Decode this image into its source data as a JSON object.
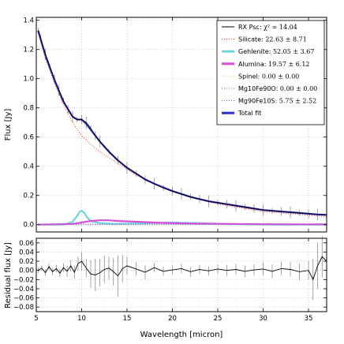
{
  "chart_data": [
    {
      "type": "line",
      "xlabel": "",
      "ylabel": "Flux [Jy]",
      "xlim": [
        5,
        37
      ],
      "ylim": [
        -0.05,
        1.42
      ],
      "xticks": [
        5,
        10,
        15,
        20,
        25,
        30,
        35
      ],
      "yticks": [
        0.0,
        0.2,
        0.4,
        0.6,
        0.8,
        1.0,
        1.2,
        1.4
      ],
      "ytick_labels": [
        "0.0",
        "0.2",
        "0.4",
        "0.6",
        "0.8",
        "1.0",
        "1.2",
        "1.4"
      ],
      "grid": true,
      "legend_position": "top-right",
      "observed": {
        "name": "RX Psc",
        "color": "#000000",
        "errorbar_color": "#808080",
        "x": [
          5.2,
          5.5,
          6.0,
          6.5,
          7.0,
          7.5,
          8.0,
          8.5,
          9.0,
          9.5,
          10.0,
          10.5,
          11.0,
          11.5,
          12.0,
          13.0,
          14.0,
          15.0,
          16.0,
          17.0,
          18.0,
          19.0,
          20.0,
          21.0,
          22.0,
          23.0,
          24.0,
          25.0,
          26.0,
          27.0,
          28.0,
          29.0,
          30.0,
          31.0,
          32.0,
          33.0,
          34.0,
          35.0,
          36.0,
          37.0
        ],
        "y": [
          1.33,
          1.27,
          1.17,
          1.08,
          1.0,
          0.92,
          0.85,
          0.79,
          0.74,
          0.72,
          0.72,
          0.7,
          0.66,
          0.61,
          0.57,
          0.5,
          0.44,
          0.39,
          0.35,
          0.31,
          0.28,
          0.25,
          0.23,
          0.21,
          0.19,
          0.175,
          0.16,
          0.15,
          0.14,
          0.13,
          0.12,
          0.11,
          0.1,
          0.095,
          0.09,
          0.085,
          0.08,
          0.075,
          0.07,
          0.068
        ]
      },
      "components": [
        {
          "name": "Silicate",
          "value": "22.63 ± 8.71",
          "color": "#ff3b30",
          "style": "dotted",
          "x": [
            5.2,
            6.0,
            7.0,
            8.0,
            9.0,
            10.0,
            11.0,
            12.0,
            13.0,
            14.0,
            15.0,
            16.0,
            17.0,
            18.0,
            20.0,
            22.0,
            24.0,
            26.0,
            28.0,
            30.0,
            32.0,
            34.0,
            36.0,
            37.0
          ],
          "y": [
            1.32,
            1.14,
            0.97,
            0.82,
            0.7,
            0.61,
            0.55,
            0.5,
            0.46,
            0.42,
            0.38,
            0.34,
            0.31,
            0.28,
            0.23,
            0.19,
            0.155,
            0.13,
            0.11,
            0.09,
            0.08,
            0.07,
            0.06,
            0.055
          ]
        },
        {
          "name": "Gehlenite",
          "value": "52.05 ± 3.67",
          "color": "#6fd6e0",
          "style": "solid-thick",
          "x": [
            5.2,
            8.0,
            9.0,
            9.5,
            9.8,
            10.0,
            10.3,
            10.6,
            11.0,
            12.0,
            14.0,
            17.0,
            20.0,
            23.0,
            26.0,
            30.0,
            37.0
          ],
          "y": [
            0.0,
            0.0,
            0.02,
            0.06,
            0.09,
            0.095,
            0.08,
            0.05,
            0.025,
            0.01,
            0.005,
            0.01,
            0.015,
            0.01,
            0.005,
            0.0,
            0.0
          ]
        },
        {
          "name": "Alumina",
          "value": "19.57 ± 6.12",
          "color": "#d94fd6",
          "style": "solid-thick",
          "x": [
            5.2,
            9.0,
            10.0,
            11.0,
            12.0,
            13.0,
            14.0,
            16.0,
            18.0,
            20.0,
            22.0,
            26.0,
            30.0,
            37.0
          ],
          "y": [
            0.0,
            0.005,
            0.015,
            0.025,
            0.03,
            0.03,
            0.025,
            0.02,
            0.015,
            0.01,
            0.008,
            0.005,
            0.003,
            0.002
          ]
        },
        {
          "name": "Spinel",
          "value": "0.00 ± 0.00",
          "color": "#e3d68a",
          "style": "dotted",
          "x": [
            5.2,
            37.0
          ],
          "y": [
            0.0,
            0.0
          ]
        },
        {
          "name": "Mg10Fe90O",
          "value": "0.00 ± 0.00",
          "color": "#7a7a7a",
          "style": "dotted",
          "x": [
            5.2,
            37.0
          ],
          "y": [
            0.0,
            0.0
          ]
        },
        {
          "name": "Mg90Fe10S",
          "value": "5.75 ± 2.52",
          "color": "#7b5cff",
          "style": "dotted",
          "x": [
            5.2,
            10.0,
            15.0,
            20.0,
            25.0,
            30.0,
            37.0
          ],
          "y": [
            0.002,
            0.003,
            0.004,
            0.004,
            0.003,
            0.002,
            0.001
          ]
        },
        {
          "name": "Total fit",
          "value": "",
          "color": "#2d2dc8",
          "style": "solid-thick",
          "x": [
            5.2,
            6.0,
            7.0,
            8.0,
            9.0,
            9.5,
            10.0,
            10.5,
            11.0,
            12.0,
            13.0,
            14.0,
            15.0,
            16.0,
            17.0,
            18.0,
            20.0,
            22.0,
            24.0,
            26.0,
            28.0,
            30.0,
            32.0,
            34.0,
            36.0,
            37.0
          ],
          "y": [
            1.33,
            1.16,
            0.99,
            0.84,
            0.74,
            0.72,
            0.72,
            0.69,
            0.65,
            0.57,
            0.5,
            0.44,
            0.39,
            0.35,
            0.31,
            0.28,
            0.23,
            0.19,
            0.16,
            0.14,
            0.12,
            0.1,
            0.09,
            0.08,
            0.07,
            0.067
          ]
        }
      ],
      "legend_header": {
        "label": "RX Psc:",
        "stat": "χ² = 14.04"
      }
    },
    {
      "type": "line",
      "xlabel": "Wavelength [micron]",
      "ylabel": "Residual flux [Jy]",
      "xlim": [
        5,
        37
      ],
      "ylim": [
        -0.09,
        0.07
      ],
      "xticks": [
        5,
        10,
        15,
        20,
        25,
        30,
        35
      ],
      "yticks": [
        -0.08,
        -0.06,
        -0.04,
        -0.02,
        0.0,
        0.02,
        0.04,
        0.06
      ],
      "ytick_labels": [
        "−0.08",
        "−0.06",
        "−0.04",
        "−0.02",
        "0.00",
        "0.02",
        "0.04",
        "0.06"
      ],
      "grid": true,
      "residual": {
        "color": "#000000",
        "errorbar_color": "#808080",
        "x": [
          5.2,
          5.6,
          6.0,
          6.4,
          6.8,
          7.2,
          7.6,
          8.0,
          8.4,
          8.8,
          9.2,
          9.6,
          10.0,
          10.5,
          11.0,
          11.5,
          12.0,
          12.5,
          13.0,
          13.5,
          14.0,
          14.5,
          15.0,
          16.0,
          17.0,
          18.0,
          19.0,
          20.0,
          21.0,
          22.0,
          23.0,
          24.0,
          25.0,
          26.0,
          27.0,
          28.0,
          29.0,
          30.0,
          31.0,
          32.0,
          33.0,
          34.0,
          35.0,
          35.5,
          36.0,
          36.5,
          37.0
        ],
        "y": [
          0.0,
          0.005,
          -0.005,
          0.008,
          -0.003,
          0.004,
          -0.006,
          0.006,
          -0.002,
          0.01,
          -0.004,
          0.015,
          0.02,
          0.005,
          -0.008,
          -0.01,
          -0.005,
          0.002,
          0.005,
          -0.003,
          -0.012,
          0.004,
          0.01,
          0.003,
          -0.004,
          0.006,
          -0.002,
          0.001,
          0.004,
          -0.003,
          0.002,
          -0.001,
          0.003,
          0.0,
          0.002,
          -0.002,
          0.001,
          0.003,
          -0.002,
          0.004,
          0.002,
          -0.003,
          0.0,
          -0.02,
          0.01,
          0.03,
          0.02
        ],
        "err": [
          0.006,
          0.006,
          0.007,
          0.007,
          0.008,
          0.008,
          0.009,
          0.01,
          0.012,
          0.012,
          0.014,
          0.015,
          0.02,
          0.02,
          0.03,
          0.035,
          0.03,
          0.03,
          0.025,
          0.03,
          0.045,
          0.03,
          0.02,
          0.015,
          0.015,
          0.01,
          0.01,
          0.01,
          0.01,
          0.01,
          0.01,
          0.01,
          0.01,
          0.012,
          0.012,
          0.012,
          0.012,
          0.014,
          0.015,
          0.015,
          0.016,
          0.018,
          0.02,
          0.045,
          0.05,
          0.045,
          0.04
        ]
      }
    }
  ]
}
